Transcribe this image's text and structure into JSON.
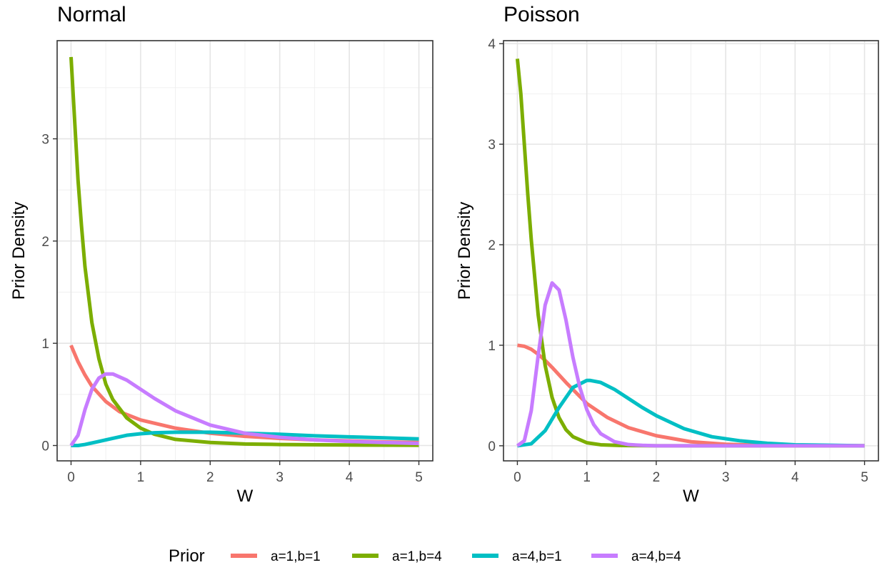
{
  "chart_data": [
    {
      "type": "line",
      "title": "Normal",
      "xlabel": "W",
      "ylabel": "Prior Density",
      "xlim": [
        -0.2,
        5.2
      ],
      "ylim": [
        -0.15,
        3.96
      ],
      "xticks": [
        0,
        1,
        2,
        3,
        4,
        5
      ],
      "yticks": [
        0,
        1,
        2,
        3
      ],
      "grid": true,
      "series": [
        {
          "name": "a=1,b=1",
          "x": [
            0,
            0.1,
            0.2,
            0.3,
            0.5,
            0.7,
            1,
            1.5,
            2,
            2.5,
            3,
            3.5,
            4,
            4.5,
            5
          ],
          "y": [
            0.98,
            0.82,
            0.69,
            0.58,
            0.43,
            0.33,
            0.25,
            0.17,
            0.12,
            0.09,
            0.07,
            0.055,
            0.045,
            0.035,
            0.03
          ]
        },
        {
          "name": "a=1,b=4",
          "x": [
            0,
            0.05,
            0.1,
            0.15,
            0.2,
            0.3,
            0.4,
            0.5,
            0.6,
            0.8,
            1,
            1.2,
            1.5,
            2,
            2.5,
            3,
            4,
            5
          ],
          "y": [
            3.8,
            3.2,
            2.6,
            2.15,
            1.75,
            1.2,
            0.85,
            0.6,
            0.45,
            0.27,
            0.17,
            0.11,
            0.06,
            0.03,
            0.015,
            0.01,
            0.005,
            0.003
          ]
        },
        {
          "name": "a=4,b=1",
          "x": [
            0,
            0.1,
            0.2,
            0.4,
            0.6,
            0.8,
            1,
            1.2,
            1.5,
            2,
            2.5,
            3,
            3.5,
            4,
            4.5,
            5
          ],
          "y": [
            0,
            0.0,
            0.01,
            0.04,
            0.07,
            0.1,
            0.115,
            0.125,
            0.13,
            0.13,
            0.12,
            0.11,
            0.095,
            0.085,
            0.075,
            0.065
          ]
        },
        {
          "name": "a=4,b=4",
          "x": [
            0,
            0.1,
            0.2,
            0.3,
            0.4,
            0.5,
            0.6,
            0.8,
            1,
            1.2,
            1.5,
            2,
            2.5,
            3,
            3.5,
            4,
            4.5,
            5
          ],
          "y": [
            0,
            0.1,
            0.35,
            0.55,
            0.66,
            0.7,
            0.7,
            0.64,
            0.55,
            0.46,
            0.34,
            0.2,
            0.12,
            0.08,
            0.055,
            0.04,
            0.03,
            0.02
          ]
        }
      ]
    },
    {
      "type": "line",
      "title": "Poisson",
      "xlabel": "W",
      "ylabel": "Prior Density",
      "xlim": [
        -0.2,
        5.2
      ],
      "ylim": [
        -0.15,
        4.03
      ],
      "xticks": [
        0,
        1,
        2,
        3,
        4,
        5
      ],
      "yticks": [
        0,
        1,
        2,
        3,
        4
      ],
      "grid": true,
      "series": [
        {
          "name": "a=1,b=1",
          "x": [
            0,
            0.1,
            0.2,
            0.3,
            0.4,
            0.5,
            0.7,
            1,
            1.3,
            1.6,
            2,
            2.5,
            3,
            3.5,
            4,
            5
          ],
          "y": [
            1.0,
            0.99,
            0.96,
            0.91,
            0.85,
            0.78,
            0.63,
            0.42,
            0.28,
            0.18,
            0.1,
            0.04,
            0.015,
            0.005,
            0.002,
            0
          ]
        },
        {
          "name": "a=1,b=4",
          "x": [
            0,
            0.05,
            0.1,
            0.15,
            0.2,
            0.3,
            0.4,
            0.5,
            0.6,
            0.7,
            0.8,
            1,
            1.2,
            1.5,
            2,
            3,
            5
          ],
          "y": [
            3.85,
            3.5,
            3.0,
            2.5,
            2.05,
            1.3,
            0.8,
            0.48,
            0.28,
            0.16,
            0.09,
            0.03,
            0.01,
            0.003,
            0,
            0,
            0
          ]
        },
        {
          "name": "a=4,b=1",
          "x": [
            0,
            0.2,
            0.4,
            0.6,
            0.8,
            1,
            1.05,
            1.2,
            1.4,
            1.6,
            1.8,
            2,
            2.4,
            2.8,
            3.2,
            3.6,
            4,
            4.5,
            5
          ],
          "y": [
            0,
            0.02,
            0.15,
            0.38,
            0.58,
            0.65,
            0.65,
            0.63,
            0.56,
            0.47,
            0.38,
            0.3,
            0.17,
            0.09,
            0.05,
            0.025,
            0.01,
            0.005,
            0
          ]
        },
        {
          "name": "a=4,b=4",
          "x": [
            0,
            0.1,
            0.2,
            0.3,
            0.4,
            0.5,
            0.6,
            0.7,
            0.8,
            0.9,
            1,
            1.1,
            1.2,
            1.4,
            1.6,
            1.8,
            2,
            2.5,
            3,
            5
          ],
          "y": [
            0,
            0.05,
            0.35,
            0.9,
            1.4,
            1.62,
            1.55,
            1.25,
            0.88,
            0.58,
            0.36,
            0.21,
            0.12,
            0.04,
            0.012,
            0.004,
            0,
            0,
            0,
            0
          ]
        }
      ]
    }
  ],
  "legend": {
    "title": "Prior",
    "position": "bottom",
    "items": [
      "a=1,b=1",
      "a=1,b=4",
      "a=4,b=1",
      "a=4,b=4"
    ],
    "colors": [
      "#F8766D",
      "#7CAE00",
      "#00BFC4",
      "#C77CFF"
    ]
  }
}
